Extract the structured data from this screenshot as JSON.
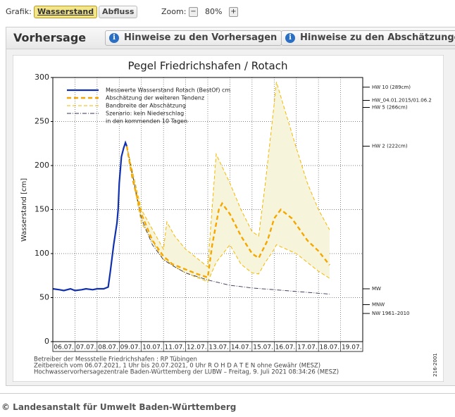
{
  "toolbar": {
    "grafik_label": "Grafik:",
    "buttons": [
      "Wasserstand",
      "Abfluss"
    ],
    "zoom_label": "Zoom:",
    "zoom_minus": "−",
    "zoom_value": "80%",
    "zoom_plus": "+"
  },
  "panel": {
    "title": "Vorhersage",
    "tabs": [
      "Hinweise zu den Vorhersagen",
      "Hinweise zu den Abschätzunge"
    ]
  },
  "chart_data": {
    "type": "line",
    "title": "Pegel Friedrichshafen / Rotach",
    "y_label": "Wasserstand [cm]",
    "ylim": [
      0,
      300
    ],
    "yticks": [
      0,
      50,
      100,
      150,
      200,
      250,
      300
    ],
    "grid": true,
    "xlim": [
      0,
      14
    ],
    "xticks": [
      {
        "value": 0.5,
        "label": "06.07."
      },
      {
        "value": 1.5,
        "label": "07.07."
      },
      {
        "value": 2.5,
        "label": "08.07."
      },
      {
        "value": 3.5,
        "label": "09.07."
      },
      {
        "value": 4.5,
        "label": "10.07."
      },
      {
        "value": 5.5,
        "label": "11.07."
      },
      {
        "value": 6.5,
        "label": "12.07."
      },
      {
        "value": 7.5,
        "label": "13.07."
      },
      {
        "value": 8.5,
        "label": "14.07."
      },
      {
        "value": 9.5,
        "label": "15.07."
      },
      {
        "value": 10.5,
        "label": "16.07."
      },
      {
        "value": 11.5,
        "label": "17.07."
      },
      {
        "value": 12.5,
        "label": "18.07."
      },
      {
        "value": 13.5,
        "label": "19.07."
      }
    ],
    "series": [
      {
        "name": "Messwerte Wasserstand Rotach  (BestOf)   cm",
        "color": "#1030b0",
        "style": "solid",
        "x": [
          0,
          0.3,
          0.5,
          0.8,
          1,
          1.3,
          1.5,
          1.8,
          2,
          2.3,
          2.5,
          2.6,
          2.75,
          2.9,
          2.95,
          3.0,
          3.1,
          3.2,
          3.28,
          3.34
        ],
        "values": [
          60,
          59,
          58,
          60,
          58,
          59,
          60,
          59,
          60,
          60,
          62,
          80,
          110,
          135,
          150,
          180,
          210,
          220,
          226,
          222
        ]
      },
      {
        "name": "Abschätzung der weiteren Tendenz",
        "color": "#f5a700",
        "style": "dashed",
        "x": [
          3.34,
          3.6,
          4,
          4.5,
          5,
          5.4,
          6,
          6.5,
          7,
          7.2,
          7.5,
          7.65,
          8,
          8.5,
          9,
          9.3,
          9.7,
          10,
          10.3,
          10.8,
          11.5,
          12,
          12.5
        ],
        "values": [
          222,
          185,
          145,
          115,
          97,
          88,
          82,
          77,
          73,
          110,
          150,
          157,
          145,
          120,
          100,
          95,
          115,
          140,
          150,
          140,
          115,
          103,
          87
        ]
      },
      {
        "name": "Bandbreite der Abschätzung",
        "color": "#f5b800",
        "style": "band",
        "fill": "#f6f5dc",
        "x": [
          3.34,
          4,
          5,
          5.15,
          5.5,
          6,
          7,
          7.38,
          8,
          8.5,
          9,
          9.3,
          9.6,
          10,
          10.1,
          11,
          11.5,
          12,
          12.5
        ],
        "values": [
          222,
          150,
          105,
          136,
          120,
          105,
          85,
          213,
          180,
          150,
          125,
          120,
          180,
          270,
          295,
          220,
          180,
          150,
          127
        ],
        "lower": [
          220,
          135,
          93,
          92,
          85,
          78,
          68,
          90,
          110,
          88,
          78,
          77,
          90,
          105,
          110,
          100,
          90,
          80,
          72
        ]
      },
      {
        "name": "Szenario: kein Niederschlag",
        "color": "#333355",
        "style": "dashdot",
        "x": [
          3.34,
          4,
          4.5,
          5,
          5.5,
          6,
          7,
          8,
          9,
          10,
          11,
          12,
          12.5
        ],
        "values": [
          222,
          140,
          110,
          93,
          85,
          78,
          70,
          64,
          61,
          59,
          57,
          55,
          54
        ]
      }
    ],
    "legend_note": "in den kommenden 10 Tagen",
    "reference_lines": [
      {
        "label": "HW 10 (289cm)",
        "value": 289
      },
      {
        "label": "HW_04.01.2015/01.06.2",
        "value": 274
      },
      {
        "label": "HW 5 (266cm)",
        "value": 266
      },
      {
        "label": "HW 2 (222cm)",
        "value": 222
      },
      {
        "label": "MW",
        "value": 60
      },
      {
        "label": "MNW",
        "value": 42
      },
      {
        "label": "NW 1961–2010",
        "value": 32
      }
    ],
    "notes": [
      "Betreiber der Messstelle Friedrichshafen : RP Tübingen",
      "Zeitbereich vom 06.07.2021, 1 Uhr bis 20.07.2021, 0 Uhr    R O H D A T E N ohne Gewähr (MESZ)",
      "Hochwasservorhersagezentrale Baden-Württemberg der LUBW – Freitag, 9. Juli 2021 08:34:26 (MESZ)"
    ],
    "side_label": "216-2001"
  },
  "footer": "© Landesanstalt für Umwelt Baden-Württemberg"
}
